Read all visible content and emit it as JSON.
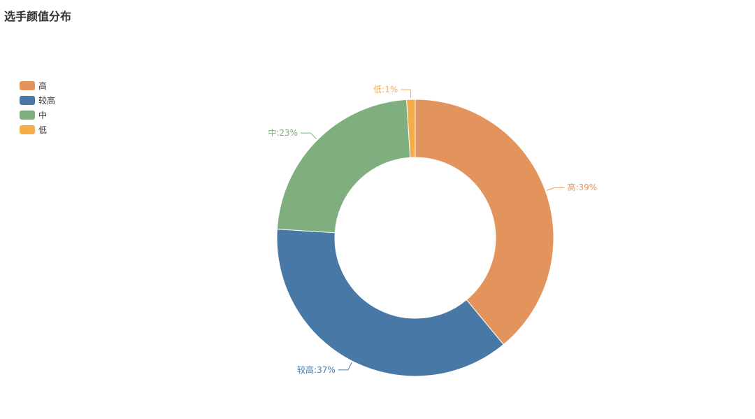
{
  "chart_data": {
    "type": "pie",
    "variant": "donut",
    "title": "选手颜值分布",
    "legend_position": "top-left",
    "label_format": "{name}:{percent}%",
    "slices": [
      {
        "name": "高",
        "percent": 39,
        "color": "#e3935c"
      },
      {
        "name": "较高",
        "percent": 37,
        "color": "#4879a6"
      },
      {
        "name": "中",
        "percent": 23,
        "color": "#7faf7e"
      },
      {
        "name": "低",
        "percent": 1,
        "color": "#f4ad49"
      }
    ]
  }
}
